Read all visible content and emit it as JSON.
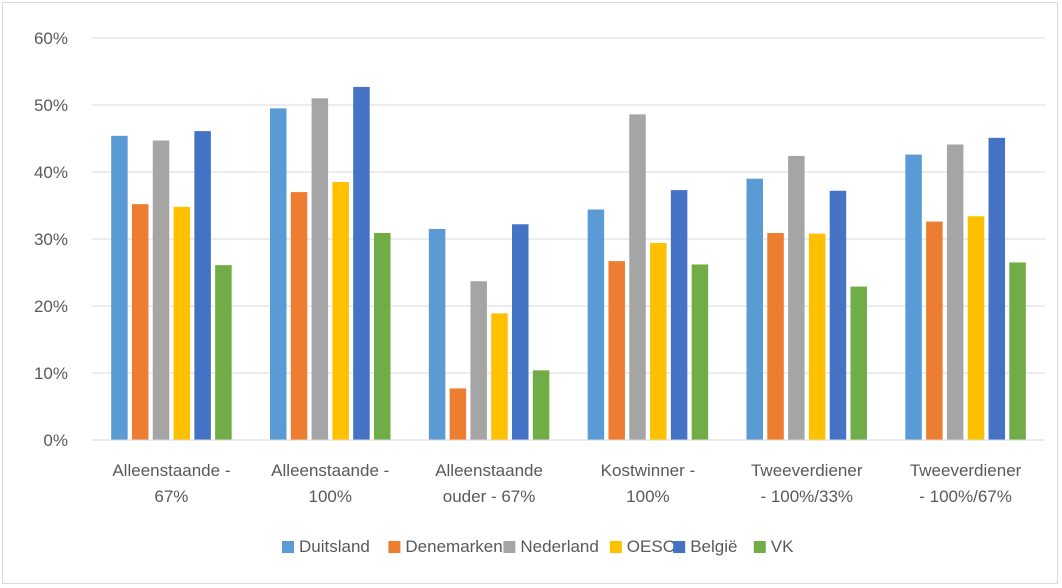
{
  "chart_data": {
    "type": "bar",
    "title": "",
    "xlabel": "",
    "ylabel": "",
    "ylim": [
      0,
      60
    ],
    "yticks": [
      "0%",
      "10%",
      "20%",
      "30%",
      "40%",
      "50%",
      "60%"
    ],
    "grid": true,
    "legend_position": "bottom",
    "categories": [
      [
        "Alleenstaande -",
        "67%"
      ],
      [
        "Alleenstaande -",
        "100%"
      ],
      [
        "Alleenstaande",
        "ouder - 67%"
      ],
      [
        "Kostwinner -",
        "100%"
      ],
      [
        "Tweeverdiener",
        "- 100%/33%"
      ],
      [
        "Tweeverdiener",
        "- 100%/67%"
      ]
    ],
    "series": [
      {
        "name": "Duitsland",
        "color": "#5b9bd5",
        "values": [
          45.4,
          49.5,
          31.5,
          34.4,
          39.0,
          42.6
        ]
      },
      {
        "name": "Denemarken",
        "color": "#ed7d31",
        "values": [
          35.2,
          37.0,
          7.7,
          26.7,
          30.9,
          32.6
        ]
      },
      {
        "name": "Nederland",
        "color": "#a5a5a5",
        "values": [
          44.7,
          51.0,
          23.7,
          48.6,
          42.4,
          44.1
        ]
      },
      {
        "name": "OESO",
        "color": "#ffc000",
        "values": [
          34.8,
          38.5,
          18.9,
          29.4,
          30.8,
          33.4
        ]
      },
      {
        "name": "België",
        "color": "#4472c4",
        "values": [
          46.1,
          52.7,
          32.2,
          37.3,
          37.2,
          45.1
        ]
      },
      {
        "name": "VK",
        "color": "#70ad47",
        "values": [
          26.1,
          30.9,
          10.4,
          26.2,
          22.9,
          26.5
        ]
      }
    ]
  }
}
